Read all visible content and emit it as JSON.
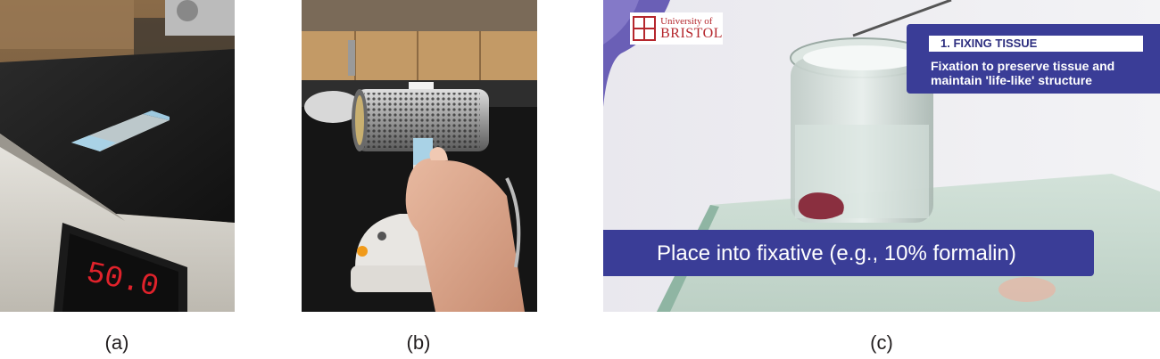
{
  "captions": {
    "a": "(a)",
    "b": "(b)",
    "c": "(c)"
  },
  "panel_a": {
    "display_readout": "50.0"
  },
  "panel_c": {
    "logo_line1": "University of",
    "logo_line2": "BRISTOL",
    "step_title": "1. FIXING TISSUE",
    "step_description": "Fixation to preserve tissue and maintain 'life-like' structure",
    "instruction": "Place into fixative (e.g., 10% formalin)"
  }
}
